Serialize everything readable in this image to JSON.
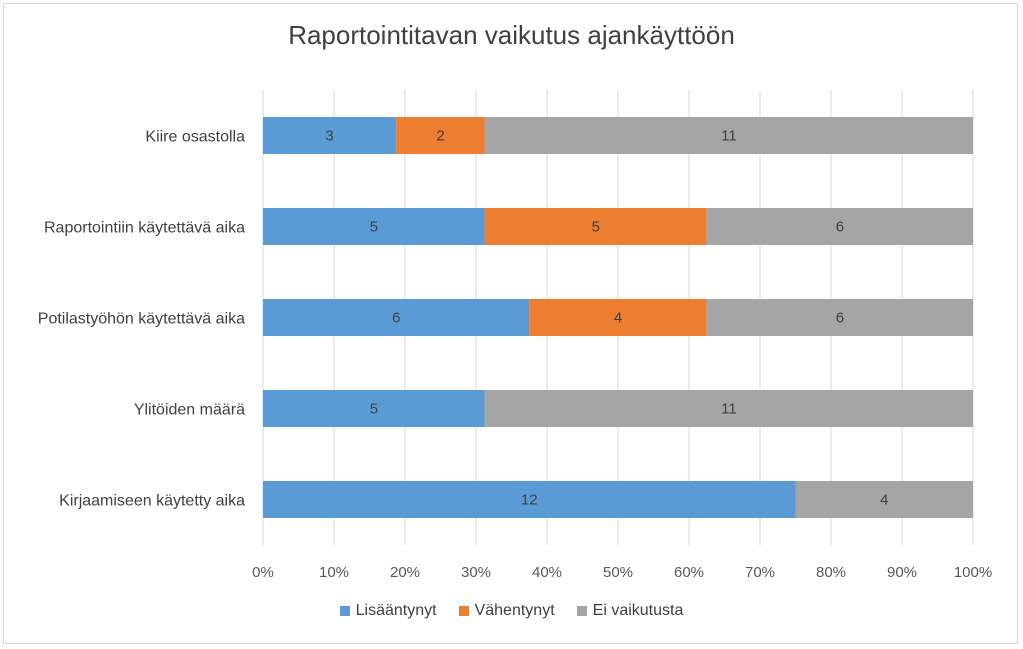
{
  "chart_data": {
    "type": "bar",
    "orientation": "horizontal",
    "stacked": "percent",
    "title": "Raportointitavan vaikutus ajankäyttöön",
    "categories": [
      "Kiire osastolla",
      "Raportointiin käytettävä aika",
      "Potilastyöhön käytettävä aika",
      "Ylitöiden määrä",
      "Kirjaamiseen käytetty aika"
    ],
    "series": [
      {
        "name": "Lisääntynyt",
        "color": "#5b9bd5",
        "values": [
          3,
          5,
          6,
          5,
          12
        ]
      },
      {
        "name": "Vähentynyt",
        "color": "#ed7d31",
        "values": [
          2,
          5,
          4,
          0,
          0
        ]
      },
      {
        "name": "Ei vaikutusta",
        "color": "#a5a5a5",
        "values": [
          11,
          6,
          6,
          11,
          4
        ]
      }
    ],
    "xticks": [
      "0%",
      "10%",
      "20%",
      "30%",
      "40%",
      "50%",
      "60%",
      "70%",
      "80%",
      "90%",
      "100%"
    ],
    "xlim": [
      0,
      100
    ],
    "grid": true,
    "legend_position": "bottom"
  }
}
